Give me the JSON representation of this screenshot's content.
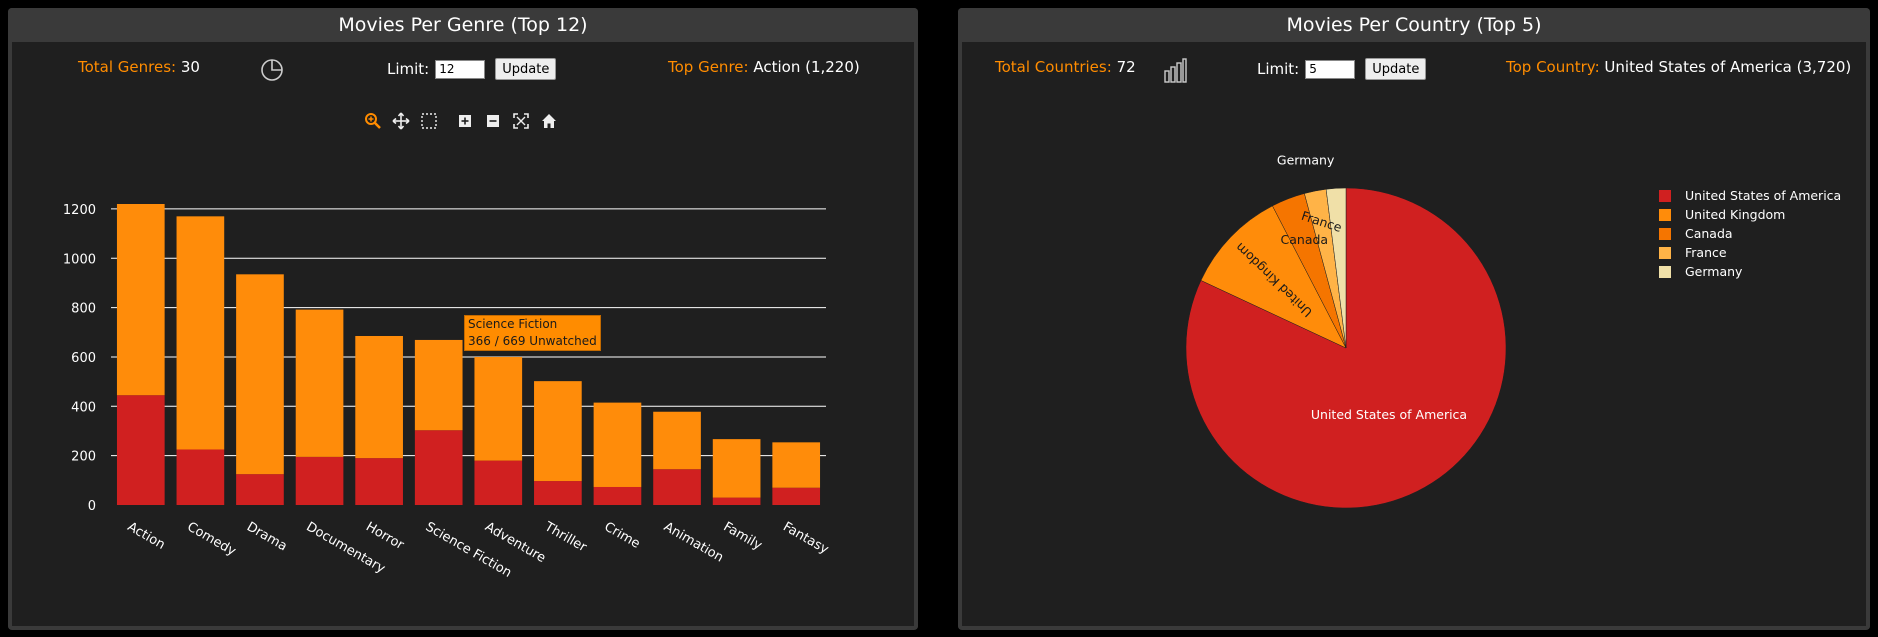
{
  "genre_panel": {
    "title": "Movies Per Genre (Top 12)",
    "total_label": "Total Genres:",
    "total_value": "30",
    "limit_label": "Limit:",
    "limit_value": "12",
    "update_label": "Update",
    "top_label": "Top Genre:",
    "top_value": "Action (1,220)",
    "switch_icon": "pie-chart-icon",
    "toolbar": [
      "zoom-icon",
      "pan-icon",
      "box-select-icon",
      "zoom-in-icon",
      "zoom-out-icon",
      "autoscale-icon",
      "reset-home-icon"
    ],
    "tooltip_title": "Science Fiction",
    "tooltip_text": "366 / 669 Unwatched"
  },
  "country_panel": {
    "title": "Movies Per Country (Top 5)",
    "total_label": "Total Countries:",
    "total_value": "72",
    "limit_label": "Limit:",
    "limit_value": "5",
    "update_label": "Update",
    "top_label": "Top Country:",
    "top_value": "United States of America (3,720)",
    "switch_icon": "bar-chart-icon"
  },
  "chart_data": [
    {
      "type": "bar",
      "stacked": true,
      "categories": [
        "Action",
        "Comedy",
        "Drama",
        "Documentary",
        "Horror",
        "Science Fiction",
        "Adventure",
        "Thriller",
        "Crime",
        "Animation",
        "Family",
        "Fantasy"
      ],
      "series": [
        {
          "values": [
            445,
            225,
            125,
            195,
            190,
            303,
            180,
            97,
            73,
            145,
            30,
            70
          ],
          "color": "#d02020"
        },
        {
          "values": [
            775,
            945,
            810,
            597,
            495,
            366,
            420,
            405,
            342,
            233,
            237,
            184
          ],
          "color": "#ff8c0a"
        }
      ],
      "totals": [
        1220,
        1170,
        935,
        792,
        685,
        669,
        600,
        502,
        415,
        378,
        267,
        254
      ],
      "yticks": [
        0,
        200,
        400,
        600,
        800,
        1000,
        1200
      ],
      "ylim": [
        0,
        1220
      ],
      "grid": true
    },
    {
      "type": "pie",
      "labels": [
        "United States of America",
        "United Kingdom",
        "Canada",
        "France",
        "Germany"
      ],
      "values": [
        3720,
        475,
        155,
        100,
        90
      ],
      "colors": [
        "#d02020",
        "#ff8c0a",
        "#f57500",
        "#ffb347",
        "#f0e0a8"
      ],
      "legend": "right"
    }
  ]
}
